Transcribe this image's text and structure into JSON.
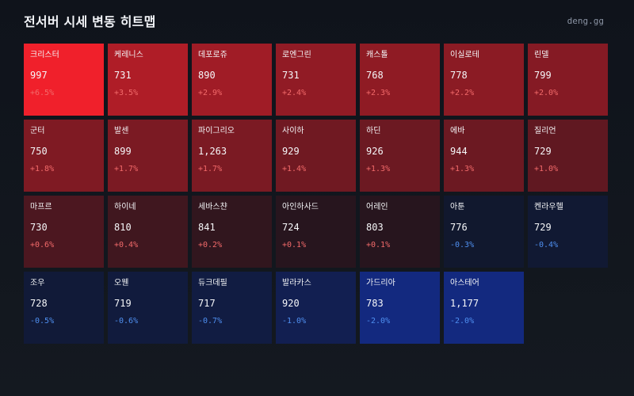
{
  "header": {
    "title": "전서버 시세 변동 히트맵",
    "brand": "deng.gg"
  },
  "colors": {
    "background": "#10141c",
    "up_strong": "#f0202b",
    "down_strong": "#13297f",
    "up_text": "#f26a6a",
    "down_text": "#4f8ff0"
  },
  "tiles": [
    {
      "name": "크리스터",
      "price": "997",
      "change": "+6.5%",
      "pct": 6.5
    },
    {
      "name": "케레니스",
      "price": "731",
      "change": "+3.5%",
      "pct": 3.5
    },
    {
      "name": "데포로쥬",
      "price": "890",
      "change": "+2.9%",
      "pct": 2.9
    },
    {
      "name": "로엔그린",
      "price": "731",
      "change": "+2.4%",
      "pct": 2.4
    },
    {
      "name": "캐스톨",
      "price": "768",
      "change": "+2.3%",
      "pct": 2.3
    },
    {
      "name": "이실로테",
      "price": "778",
      "change": "+2.2%",
      "pct": 2.2
    },
    {
      "name": "린델",
      "price": "799",
      "change": "+2.0%",
      "pct": 2.0
    },
    {
      "name": "군터",
      "price": "750",
      "change": "+1.8%",
      "pct": 1.8
    },
    {
      "name": "발센",
      "price": "899",
      "change": "+1.7%",
      "pct": 1.7
    },
    {
      "name": "파이그리오",
      "price": "1,263",
      "change": "+1.7%",
      "pct": 1.7
    },
    {
      "name": "사이하",
      "price": "929",
      "change": "+1.4%",
      "pct": 1.4
    },
    {
      "name": "하딘",
      "price": "926",
      "change": "+1.3%",
      "pct": 1.3
    },
    {
      "name": "에바",
      "price": "944",
      "change": "+1.3%",
      "pct": 1.3
    },
    {
      "name": "질리언",
      "price": "729",
      "change": "+1.0%",
      "pct": 1.0
    },
    {
      "name": "마프르",
      "price": "730",
      "change": "+0.6%",
      "pct": 0.6
    },
    {
      "name": "하이네",
      "price": "810",
      "change": "+0.4%",
      "pct": 0.4
    },
    {
      "name": "세바스챤",
      "price": "841",
      "change": "+0.2%",
      "pct": 0.2
    },
    {
      "name": "아인하사드",
      "price": "724",
      "change": "+0.1%",
      "pct": 0.1
    },
    {
      "name": "어레인",
      "price": "803",
      "change": "+0.1%",
      "pct": 0.1
    },
    {
      "name": "아툰",
      "price": "776",
      "change": "-0.3%",
      "pct": -0.3
    },
    {
      "name": "켄라우헬",
      "price": "729",
      "change": "-0.4%",
      "pct": -0.4
    },
    {
      "name": "조우",
      "price": "728",
      "change": "-0.5%",
      "pct": -0.5
    },
    {
      "name": "오웬",
      "price": "719",
      "change": "-0.6%",
      "pct": -0.6
    },
    {
      "name": "듀크데필",
      "price": "717",
      "change": "-0.7%",
      "pct": -0.7
    },
    {
      "name": "발라카스",
      "price": "920",
      "change": "-1.0%",
      "pct": -1.0
    },
    {
      "name": "가드리아",
      "price": "783",
      "change": "-2.0%",
      "pct": -2.0
    },
    {
      "name": "아스테어",
      "price": "1,177",
      "change": "-2.0%",
      "pct": -2.0
    }
  ]
}
